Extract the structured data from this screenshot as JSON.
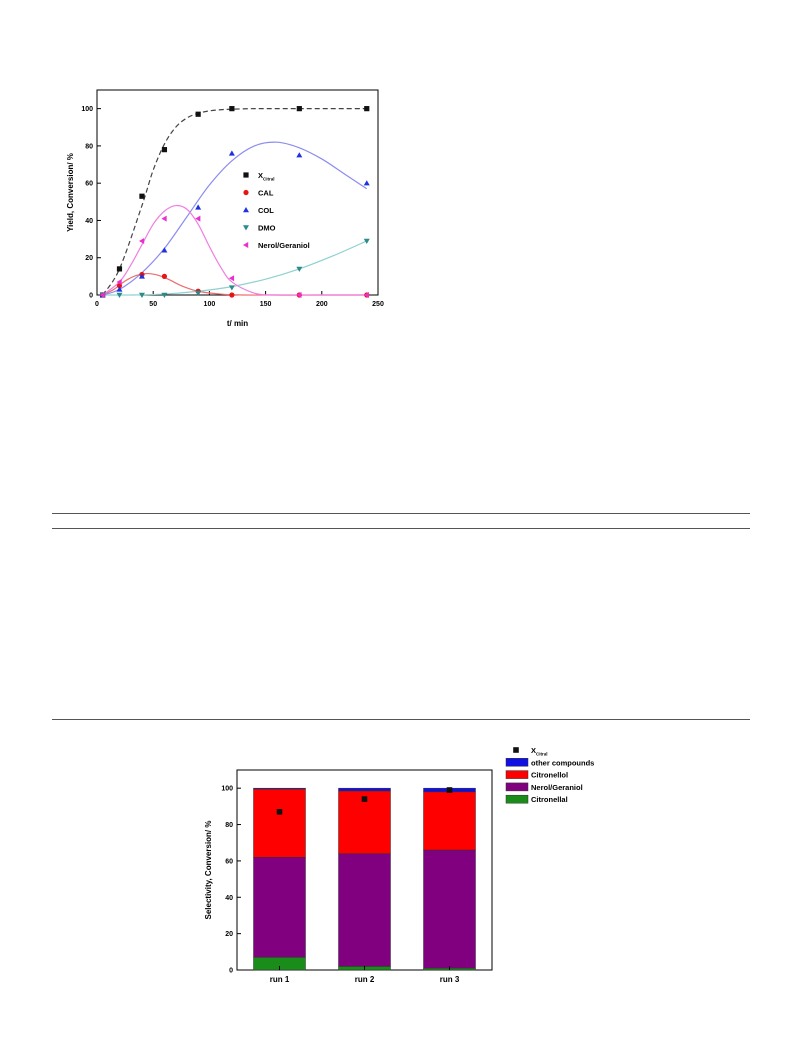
{
  "chart_data": [
    {
      "type": "scatter",
      "xlabel": "t/ min",
      "ylabel": "Yield, Conversion/ %",
      "xlim": [
        0,
        250
      ],
      "ylim": [
        0,
        110
      ],
      "xticks": [
        0,
        50,
        100,
        150,
        200,
        250
      ],
      "yticks": [
        0,
        20,
        40,
        60,
        80,
        100
      ],
      "grid": false,
      "legend_position": "middle-right",
      "series": [
        {
          "name": "X",
          "name_subscript": "Citral",
          "marker": "square",
          "color": "#111111",
          "x": [
            5,
            20,
            40,
            60,
            90,
            120,
            180,
            240
          ],
          "y": [
            0,
            14,
            53,
            78,
            97,
            100,
            100,
            100
          ],
          "fit_style": "dashed",
          "fit_color": "#444444",
          "fit_x": [
            5,
            20,
            40,
            50,
            60,
            70,
            80,
            90,
            100,
            110,
            120,
            140,
            160,
            180,
            200,
            220,
            240
          ],
          "fit_y": [
            0,
            14,
            48,
            67,
            81,
            90,
            95,
            97.5,
            98.8,
            99.4,
            99.7,
            100,
            100,
            100,
            100,
            100,
            100
          ]
        },
        {
          "name": "CAL",
          "marker": "circle",
          "color": "#e81414",
          "x": [
            5,
            20,
            40,
            60,
            90,
            120,
            180,
            240
          ],
          "y": [
            0,
            5,
            11,
            10,
            2,
            0,
            0,
            0
          ],
          "fit_style": "solid",
          "fit_color": "#ef6c6c",
          "fit_x": [
            5,
            15,
            25,
            35,
            45,
            55,
            65,
            75,
            90,
            110,
            130,
            160,
            200,
            240
          ],
          "fit_y": [
            0,
            3,
            7.5,
            10.5,
            11.5,
            10.5,
            8,
            5,
            2,
            0.5,
            0,
            0,
            0,
            0
          ]
        },
        {
          "name": "COL",
          "marker": "triangle-up",
          "color": "#1f32e0",
          "x": [
            5,
            20,
            40,
            60,
            90,
            120,
            180,
            240
          ],
          "y": [
            0,
            3,
            10,
            24,
            47,
            76,
            75,
            60
          ],
          "fit_style": "solid",
          "fit_color": "#8c8cf0",
          "fit_x": [
            5,
            20,
            40,
            60,
            80,
            100,
            120,
            140,
            160,
            180,
            200,
            220,
            240
          ],
          "fit_y": [
            0,
            3,
            12,
            25,
            42,
            59,
            72,
            80,
            82,
            79,
            73,
            65,
            57
          ]
        },
        {
          "name": "DMO",
          "marker": "triangle-down",
          "color": "#2a8b8b",
          "x": [
            5,
            20,
            40,
            60,
            90,
            120,
            180,
            240
          ],
          "y": [
            0,
            0,
            0,
            0,
            1,
            4,
            14,
            29
          ],
          "fit_style": "solid",
          "fit_color": "#8fd0d0",
          "fit_x": [
            5,
            30,
            60,
            90,
            120,
            150,
            180,
            210,
            240
          ],
          "fit_y": [
            0,
            0,
            0.5,
            2,
            4.5,
            8.5,
            14,
            21,
            29
          ]
        },
        {
          "name": "Nerol/Geraniol",
          "marker": "triangle-left",
          "color": "#ea2ed0",
          "x": [
            5,
            20,
            40,
            60,
            90,
            120,
            180,
            240
          ],
          "y": [
            0,
            7,
            29,
            41,
            41,
            9,
            0,
            0
          ],
          "fit_style": "solid",
          "fit_color": "#f07ee0",
          "fit_x": [
            5,
            20,
            30,
            40,
            50,
            60,
            70,
            80,
            90,
            100,
            110,
            120,
            140,
            160,
            200,
            240
          ],
          "fit_y": [
            0,
            7,
            16,
            27,
            38,
            45,
            48,
            46,
            38,
            26,
            15,
            7,
            1,
            0,
            0,
            0
          ]
        }
      ]
    },
    {
      "type": "bar",
      "stacked": true,
      "ylabel": "Selectivity, Conversion/ %",
      "xlabel": "",
      "ylim": [
        0,
        110
      ],
      "yticks": [
        0,
        20,
        40,
        60,
        80,
        100
      ],
      "grid": false,
      "legend_position": "outside-top-right",
      "categories": [
        "run 1",
        "run 2",
        "run 3"
      ],
      "legend_order": [
        "X",
        "other compounds",
        "Citronellol",
        "Nerol/Geraniol",
        "Citronellal"
      ],
      "series": [
        {
          "name": "Citronellal",
          "color": "#1a8c1a",
          "values": [
            7,
            2,
            1
          ]
        },
        {
          "name": "Nerol/Geraniol",
          "color": "#800080",
          "values": [
            55,
            62,
            65
          ]
        },
        {
          "name": "Citronellol",
          "color": "#ff0000",
          "values": [
            37.5,
            34.5,
            32
          ]
        },
        {
          "name": "other compounds",
          "color": "#1010e0",
          "values": [
            0.5,
            1.5,
            2
          ]
        }
      ],
      "conversion": {
        "name": "X",
        "name_subscript": "Citral",
        "marker": "square",
        "color": "#111111",
        "values": [
          87,
          94,
          99
        ]
      }
    }
  ]
}
